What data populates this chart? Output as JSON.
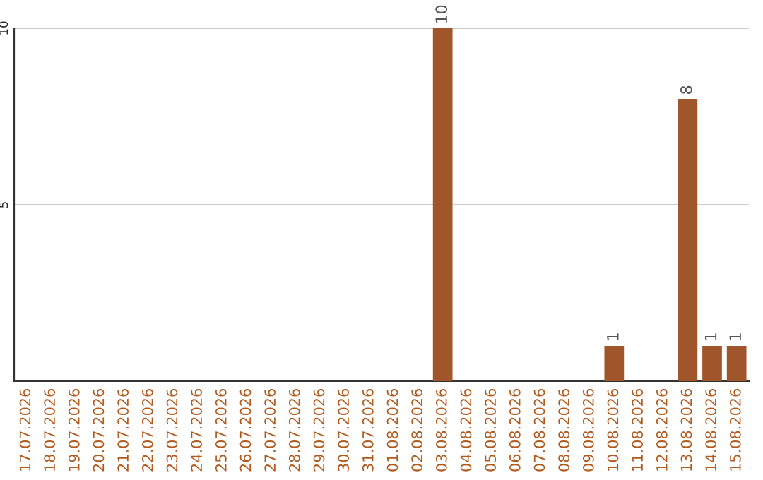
{
  "chart_data": {
    "type": "bar",
    "categories": [
      "17.07.2026",
      "18.07.2026",
      "19.07.2026",
      "20.07.2026",
      "21.07.2026",
      "22.07.2026",
      "23.07.2026",
      "24.07.2026",
      "25.07.2026",
      "26.07.2026",
      "27.07.2026",
      "28.07.2026",
      "29.07.2026",
      "30.07.2026",
      "31.07.2026",
      "01.08.2026",
      "02.08.2026",
      "03.08.2026",
      "04.08.2026",
      "05.08.2026",
      "06.08.2026",
      "07.08.2026",
      "08.08.2026",
      "09.08.2026",
      "10.08.2026",
      "11.08.2026",
      "12.08.2026",
      "13.08.2026",
      "14.08.2026",
      "15.08.2026"
    ],
    "values": [
      0,
      0,
      0,
      0,
      0,
      0,
      0,
      0,
      0,
      0,
      0,
      0,
      0,
      0,
      0,
      0,
      0,
      10,
      0,
      0,
      0,
      0,
      0,
      0,
      1,
      0,
      0,
      8,
      1,
      1
    ],
    "value_labels": [
      null,
      null,
      null,
      null,
      null,
      null,
      null,
      null,
      null,
      null,
      null,
      null,
      null,
      null,
      null,
      null,
      null,
      "10",
      null,
      null,
      null,
      null,
      null,
      null,
      "1",
      null,
      null,
      "8",
      "1",
      "1"
    ],
    "color": "#a0562a",
    "ylim": [
      0,
      10
    ],
    "yticks": [
      5,
      10
    ],
    "grid": "y"
  }
}
